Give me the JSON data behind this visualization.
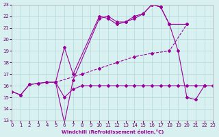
{
  "xlabel": "Windchill (Refroidissement éolien,°C)",
  "xlim": [
    0,
    23
  ],
  "ylim": [
    13,
    23
  ],
  "yticks": [
    13,
    14,
    15,
    16,
    17,
    18,
    19,
    20,
    21,
    22,
    23
  ],
  "xticks": [
    0,
    1,
    2,
    3,
    4,
    5,
    6,
    7,
    8,
    9,
    10,
    11,
    12,
    13,
    14,
    15,
    16,
    17,
    18,
    19,
    20,
    21,
    22,
    23
  ],
  "bg_color": "#d8f0f0",
  "grid_color": "#b0d8d8",
  "line_color": "#990099",
  "line1": [
    [
      0,
      15.5
    ],
    [
      1,
      15.2
    ],
    [
      2,
      16.1
    ],
    [
      3,
      16.2
    ],
    [
      4,
      16.3
    ],
    [
      5,
      16.3
    ],
    [
      6,
      15.0
    ],
    [
      7,
      15.7
    ],
    [
      8,
      16.0
    ],
    [
      9,
      16.0
    ],
    [
      10,
      16.0
    ],
    [
      11,
      16.0
    ],
    [
      12,
      16.0
    ],
    [
      13,
      16.0
    ],
    [
      14,
      16.0
    ],
    [
      15,
      16.0
    ],
    [
      16,
      16.0
    ],
    [
      17,
      16.0
    ],
    [
      18,
      16.0
    ],
    [
      19,
      16.0
    ],
    [
      20,
      16.0
    ],
    [
      21,
      16.0
    ],
    [
      22,
      16.0
    ],
    [
      23,
      16.0
    ]
  ],
  "line2": [
    [
      0,
      15.5
    ],
    [
      1,
      15.2
    ],
    [
      2,
      16.1
    ],
    [
      3,
      16.2
    ],
    [
      4,
      16.3
    ],
    [
      5,
      16.3
    ],
    [
      6,
      12.8
    ],
    [
      7,
      16.5
    ],
    [
      10,
      21.8
    ],
    [
      11,
      22.0
    ],
    [
      12,
      21.5
    ],
    [
      13,
      21.5
    ],
    [
      14,
      21.8
    ],
    [
      15,
      22.2
    ],
    [
      16,
      23.0
    ],
    [
      17,
      22.8
    ],
    [
      18,
      21.3
    ],
    [
      19,
      19.0
    ],
    [
      20,
      15.0
    ],
    [
      21,
      14.8
    ],
    [
      22,
      16.0
    ]
  ],
  "line3": [
    [
      5,
      16.3
    ],
    [
      6,
      19.3
    ],
    [
      7,
      17.0
    ],
    [
      10,
      22.0
    ],
    [
      11,
      21.8
    ],
    [
      12,
      21.3
    ],
    [
      13,
      21.5
    ],
    [
      14,
      22.0
    ],
    [
      15,
      22.2
    ],
    [
      16,
      23.0
    ],
    [
      17,
      22.8
    ],
    [
      18,
      21.3
    ],
    [
      20,
      21.3
    ]
  ],
  "line4": [
    [
      5,
      16.3
    ],
    [
      8,
      17.0
    ],
    [
      10,
      17.5
    ],
    [
      12,
      18.0
    ],
    [
      14,
      18.5
    ],
    [
      16,
      18.8
    ],
    [
      18,
      19.0
    ],
    [
      20,
      21.3
    ]
  ]
}
